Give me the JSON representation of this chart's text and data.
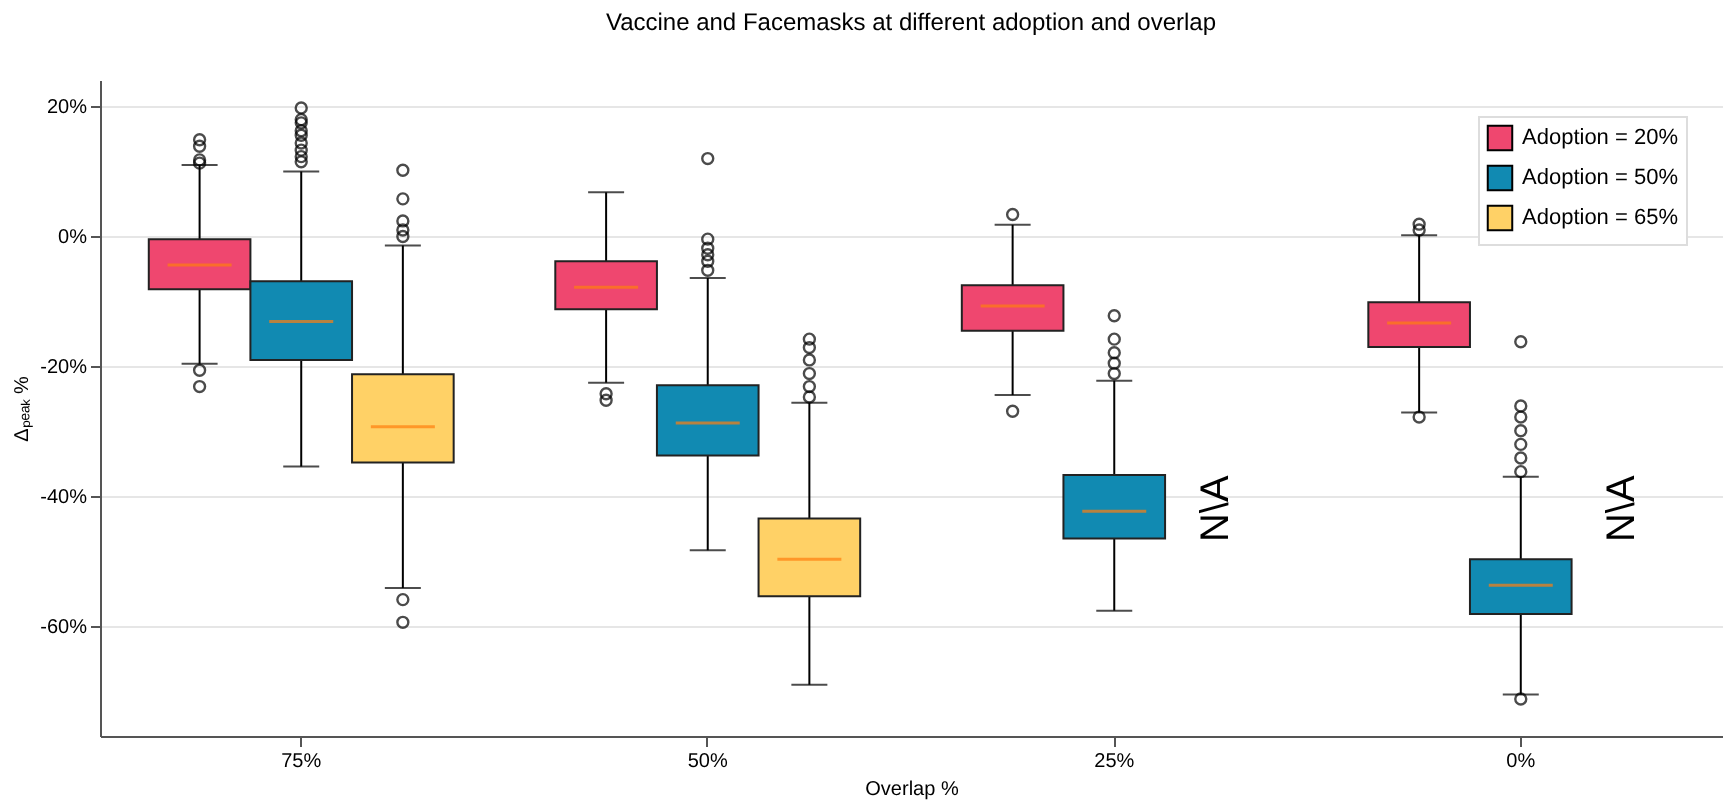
{
  "chart_data": {
    "type": "box",
    "title": "Vaccine and Facemasks at different adoption and overlap",
    "xlabel": "Overlap %",
    "ylabel": "Δₚₑₐₖ %",
    "categories": [
      "75%",
      "50%",
      "25%",
      "0%"
    ],
    "ylim": [
      -77,
      24
    ],
    "yticks": [
      {
        "value": 20,
        "label": "20%"
      },
      {
        "value": 0,
        "label": "0%"
      },
      {
        "value": -20,
        "label": "-20%"
      },
      {
        "value": -40,
        "label": "-40%"
      },
      {
        "value": -60,
        "label": "-60%"
      }
    ],
    "grid": "y",
    "legend": "top right",
    "marker": "circle",
    "series": [
      {
        "name": "Adoption = 20%",
        "color": "#ef476f",
        "boxes": [
          {
            "low": -19.7,
            "q1": -8.2,
            "median": -4.5,
            "q3": -0.5,
            "high": 10.9,
            "outliers": [
              14.8,
              13.8,
              11.7,
              11.2,
              -20.7,
              -23.2
            ]
          },
          {
            "low": -22.6,
            "q1": -11.3,
            "median": -7.9,
            "q3": -3.9,
            "high": 6.7,
            "outliers": [
              -24.3,
              -25.3
            ]
          },
          {
            "low": -24.5,
            "q1": -14.6,
            "median": -10.8,
            "q3": -7.6,
            "high": 1.7,
            "outliers": [
              3.3,
              -27.0
            ]
          },
          {
            "low": -27.2,
            "q1": -17.1,
            "median": -13.4,
            "q3": -10.2,
            "high": 0.1,
            "outliers": [
              1.8,
              0.9,
              -27.9
            ]
          }
        ]
      },
      {
        "name": "Adoption = 50%",
        "color": "#118ab2",
        "boxes": [
          {
            "low": -35.5,
            "q1": -19.1,
            "median": -13.2,
            "q3": -7.0,
            "high": 9.9,
            "outliers": [
              19.7,
              17.9,
              17.4,
              16.2,
              15.5,
              14.3,
              13.2,
              12.2,
              11.4
            ]
          },
          {
            "low": -48.4,
            "q1": -33.8,
            "median": -28.8,
            "q3": -23.0,
            "high": -6.5,
            "outliers": [
              11.9,
              -0.5,
              -1.9,
              -2.9,
              -3.9,
              -5.3
            ]
          },
          {
            "low": -57.7,
            "q1": -46.6,
            "median": -42.4,
            "q3": -36.8,
            "high": -22.3,
            "outliers": [
              -12.3,
              -15.9,
              -18.0,
              -19.6,
              -21.2
            ]
          },
          {
            "low": -70.6,
            "q1": -58.2,
            "median": -53.8,
            "q3": -49.8,
            "high": -37.1,
            "outliers": [
              -16.3,
              -26.2,
              -27.9,
              -30.0,
              -32.1,
              -34.2,
              -36.3,
              -71.3
            ]
          }
        ]
      },
      {
        "name": "Adoption = 65%",
        "color": "#ffd166",
        "boxes": [
          {
            "low": -54.2,
            "q1": -34.9,
            "median": -29.4,
            "q3": -21.3,
            "high": -1.5,
            "outliers": [
              10.1,
              5.7,
              2.3,
              0.9,
              -0.1,
              -56.0,
              -59.5
            ]
          },
          {
            "low": -69.1,
            "q1": -55.5,
            "median": -49.8,
            "q3": -43.5,
            "high": -25.7,
            "outliers": [
              -15.9,
              -17.2,
              -19.1,
              -21.2,
              -23.2,
              -24.8
            ]
          },
          null,
          null
        ]
      }
    ],
    "annotations": [
      {
        "text": "N\\A",
        "x": "25%",
        "y": -42
      },
      {
        "text": "N\\A",
        "x": "0%",
        "y": -42
      }
    ]
  }
}
